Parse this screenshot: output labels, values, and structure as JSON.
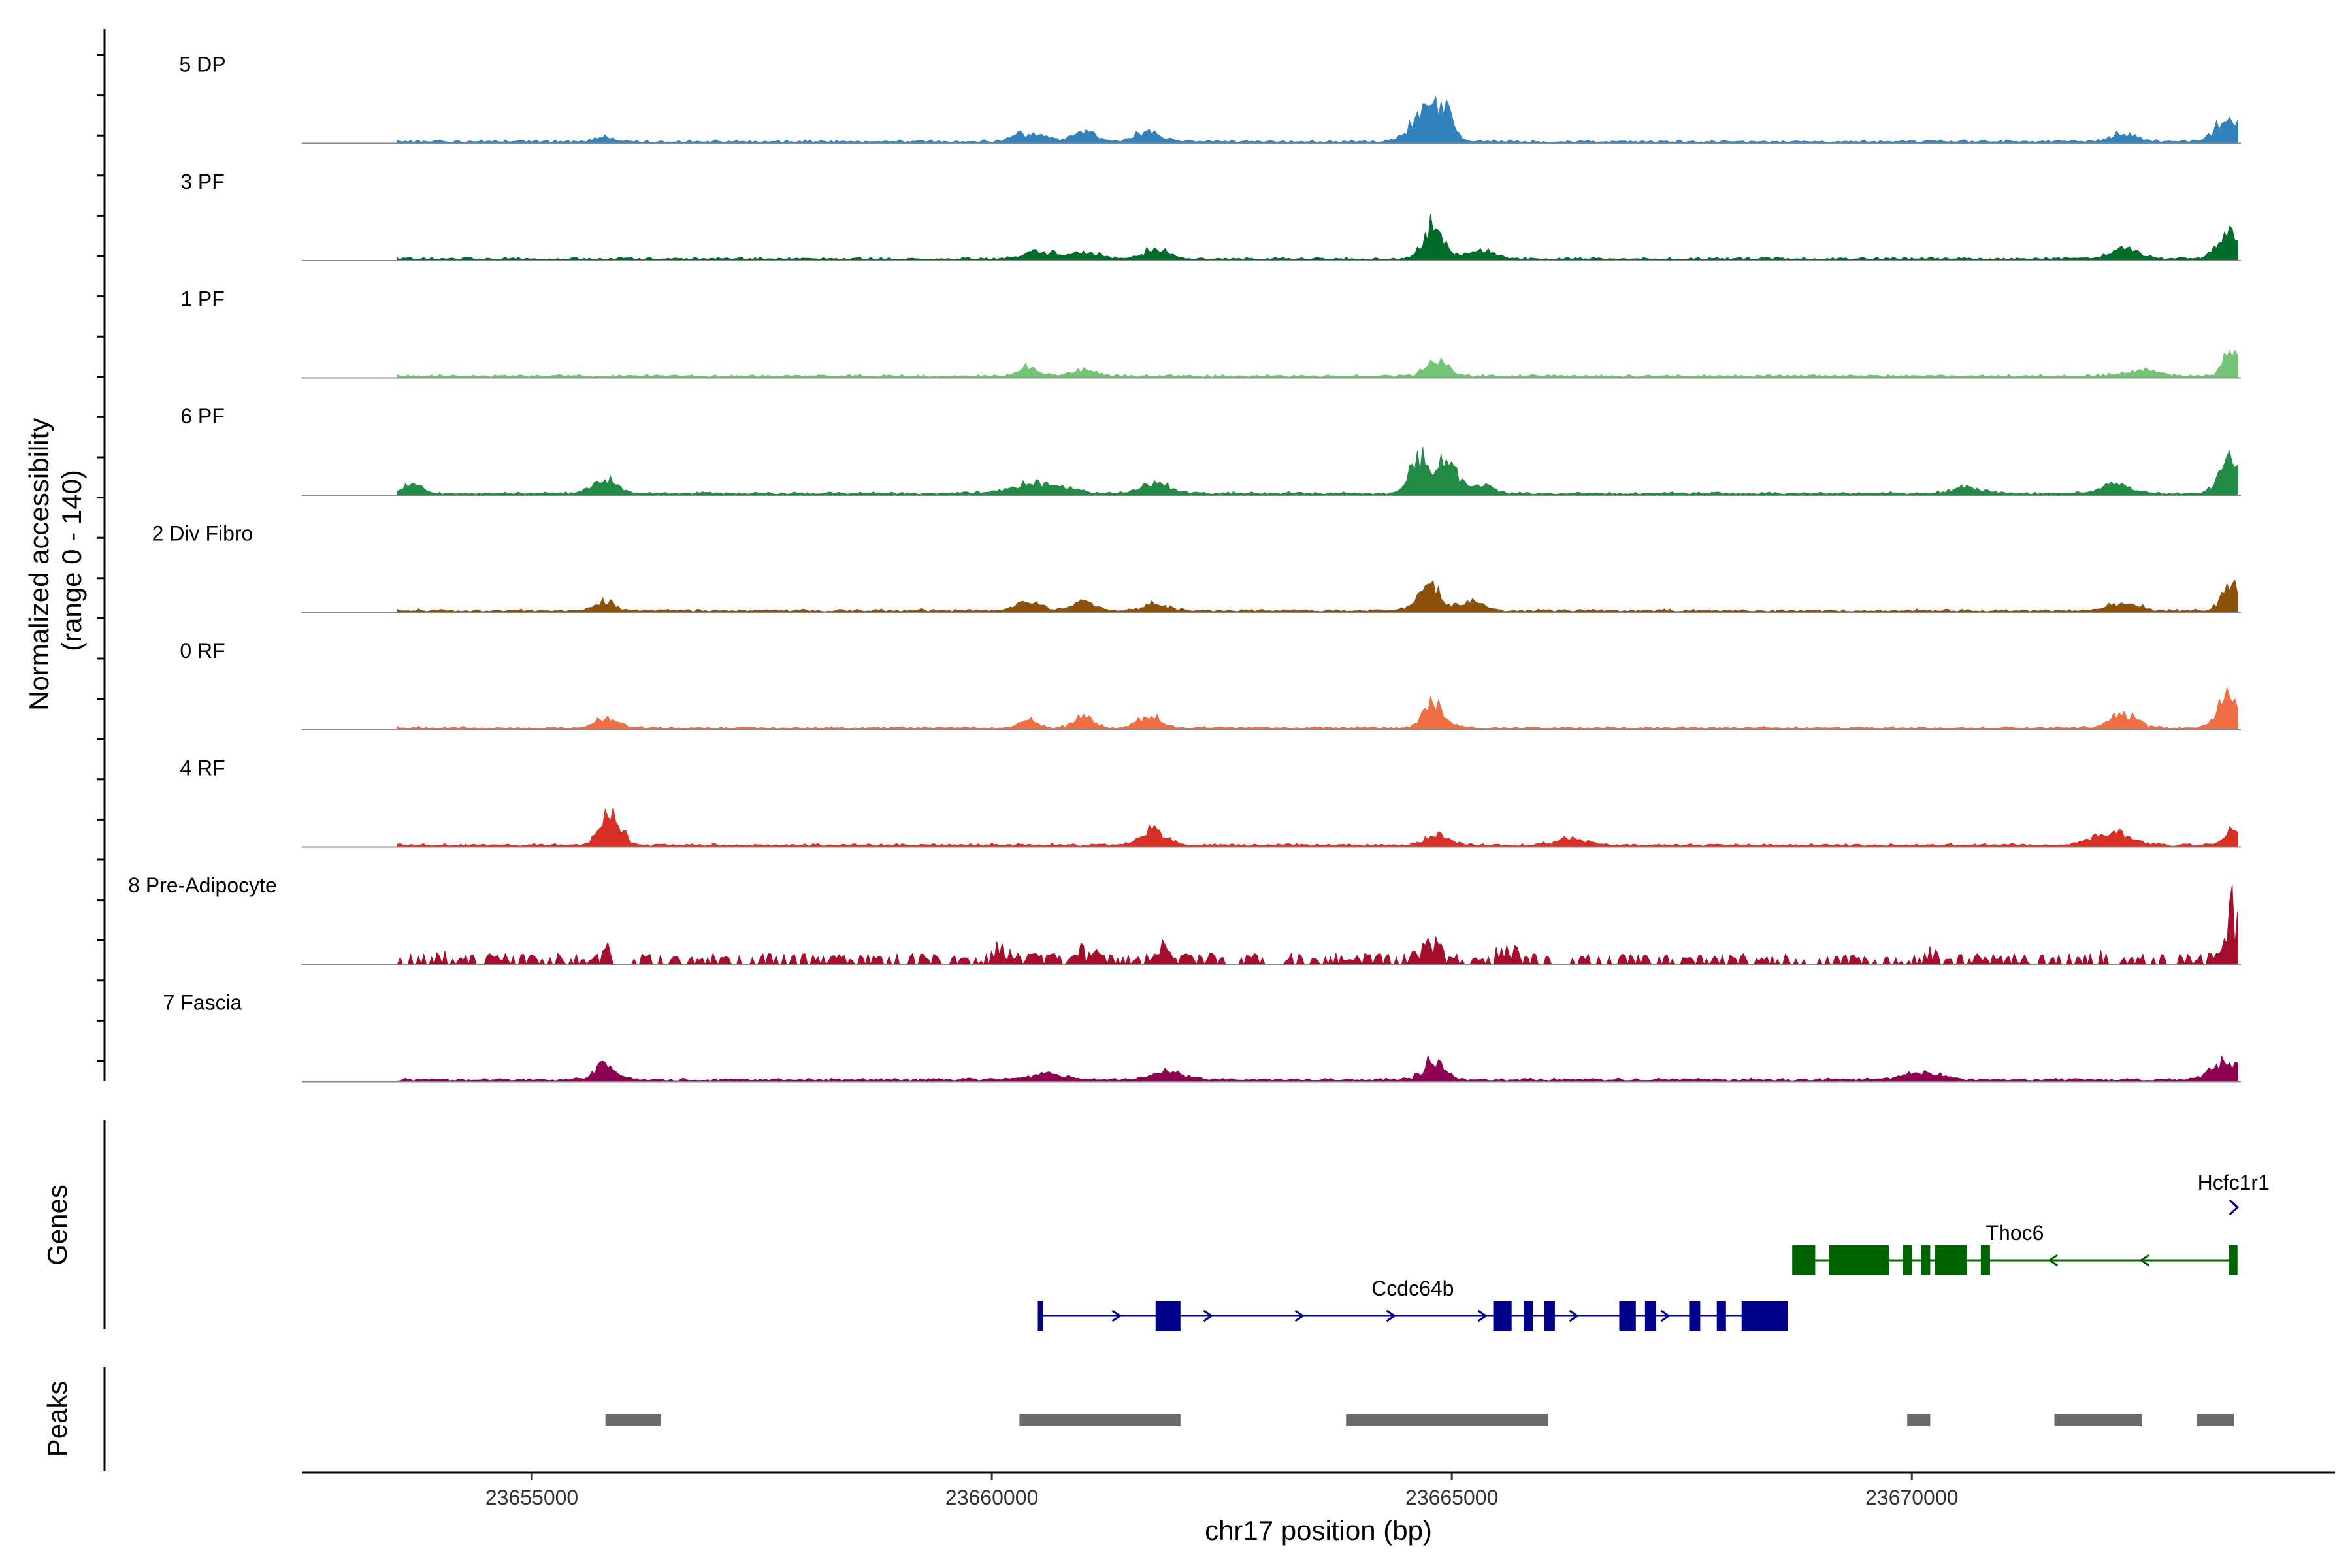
{
  "chart_data": {
    "type": "area",
    "title": "",
    "xlabel": "chr17 position (bp)",
    "ylabel": "Normalized accessibility\n(range 0 - 140)",
    "ylabel_lines": [
      "Normalized accessibility",
      "(range 0 - 140)"
    ],
    "y_range": [
      0,
      140
    ],
    "xlim": [
      23652500,
      23674600
    ],
    "data_xlim": [
      23653540,
      23673540
    ],
    "x_ticks": [
      23655000,
      23660000,
      23665000,
      23670000
    ],
    "x_tick_labels": [
      "23655000",
      "23660000",
      "23665000",
      "23670000"
    ],
    "series": [
      {
        "name": "5 DP",
        "color": "#3182bd",
        "peaks": [
          [
            23655800,
            8,
            110
          ],
          [
            23660400,
            12,
            160
          ],
          [
            23661000,
            16,
            120
          ],
          [
            23661700,
            14,
            140
          ],
          [
            23664750,
            50,
            90
          ],
          [
            23664950,
            55,
            70
          ],
          [
            23664600,
            22,
            120
          ],
          [
            23672300,
            12,
            140
          ],
          [
            23673450,
            42,
            130
          ]
        ]
      },
      {
        "name": "3 PF",
        "color": "#006d2c",
        "peaks": [
          [
            23660500,
            10,
            170
          ],
          [
            23661000,
            10,
            160
          ],
          [
            23661800,
            15,
            140
          ],
          [
            23664800,
            50,
            110
          ],
          [
            23665300,
            12,
            170
          ],
          [
            23672300,
            16,
            150
          ],
          [
            23673450,
            42,
            120
          ]
        ]
      },
      {
        "name": "1 PF",
        "color": "#74c476",
        "peaks": [
          [
            23660400,
            13,
            110
          ],
          [
            23661000,
            8,
            140
          ],
          [
            23664850,
            26,
            120
          ],
          [
            23672500,
            8,
            220
          ],
          [
            23673480,
            40,
            90
          ]
        ]
      },
      {
        "name": "6 PF",
        "color": "#238b45",
        "peaks": [
          [
            23653700,
            12,
            110
          ],
          [
            23655800,
            22,
            130
          ],
          [
            23660500,
            16,
            270
          ],
          [
            23661800,
            16,
            140
          ],
          [
            23664650,
            48,
            110
          ],
          [
            23664950,
            50,
            110
          ],
          [
            23665300,
            14,
            120
          ],
          [
            23670600,
            10,
            160
          ],
          [
            23672200,
            14,
            160
          ],
          [
            23673450,
            52,
            110
          ]
        ]
      },
      {
        "name": "2 Div Fibro",
        "color": "#8c510a",
        "peaks": [
          [
            23655800,
            13,
            110
          ],
          [
            23660400,
            16,
            130
          ],
          [
            23661000,
            14,
            120
          ],
          [
            23661800,
            11,
            120
          ],
          [
            23664750,
            38,
            120
          ],
          [
            23665200,
            14,
            140
          ],
          [
            23672300,
            12,
            150
          ],
          [
            23673470,
            50,
            90
          ]
        ]
      },
      {
        "name": "0 RF",
        "color": "#f16d44",
        "peaks": [
          [
            23655800,
            14,
            130
          ],
          [
            23660400,
            10,
            110
          ],
          [
            23661000,
            16,
            110
          ],
          [
            23661700,
            18,
            130
          ],
          [
            23664800,
            32,
            120
          ],
          [
            23672300,
            20,
            140
          ],
          [
            23673450,
            48,
            120
          ]
        ]
      },
      {
        "name": "4 RF",
        "color": "#d73027",
        "peaks": [
          [
            23655850,
            50,
            110
          ],
          [
            23661750,
            26,
            130
          ],
          [
            23664850,
            16,
            120
          ],
          [
            23666300,
            10,
            170
          ],
          [
            23672000,
            12,
            140
          ],
          [
            23672300,
            16,
            140
          ],
          [
            23673480,
            25,
            80
          ]
        ]
      },
      {
        "name": "8 Pre-Adipocyte",
        "color": "#a50f2d",
        "peaks": [
          [
            23654000,
            10,
            60
          ],
          [
            23655800,
            18,
            60
          ],
          [
            23660100,
            42,
            60
          ],
          [
            23660900,
            50,
            60
          ],
          [
            23661100,
            20,
            60
          ],
          [
            23661800,
            50,
            60
          ],
          [
            23664750,
            44,
            100
          ],
          [
            23665600,
            40,
            90
          ],
          [
            23670200,
            20,
            60
          ],
          [
            23672000,
            14,
            60
          ],
          [
            23673500,
            120,
            60
          ]
        ]
      },
      {
        "name": "7 Fascia",
        "color": "#8e0152",
        "peaks": [
          [
            23655800,
            22,
            120
          ],
          [
            23660600,
            9,
            200
          ],
          [
            23661900,
            14,
            160
          ],
          [
            23664800,
            30,
            110
          ],
          [
            23670100,
            12,
            200
          ],
          [
            23673450,
            28,
            170
          ]
        ]
      }
    ],
    "genes": [
      {
        "name": "Hcfc1r1",
        "strand": "+",
        "start": 23673480,
        "end": 23673540,
        "exons": [],
        "color": "#00008b"
      },
      {
        "name": "Thoc6",
        "strand": "-",
        "start": 23668700,
        "end": 23673540,
        "exons": [
          [
            23668700,
            23668950
          ],
          [
            23669100,
            23669750
          ],
          [
            23669900,
            23670000
          ],
          [
            23670100,
            23670200
          ],
          [
            23670250,
            23670600
          ],
          [
            23670750,
            23670850
          ],
          [
            23673450,
            23673540
          ]
        ],
        "color": "#006400"
      },
      {
        "name": "Ccdc64b",
        "strand": "+",
        "start": 23660500,
        "end": 23668650,
        "exons": [
          [
            23660500,
            23660540
          ],
          [
            23661780,
            23662050
          ],
          [
            23665450,
            23665650
          ],
          [
            23665780,
            23665880
          ],
          [
            23666000,
            23666120
          ],
          [
            23666820,
            23667000
          ],
          [
            23667100,
            23667220
          ],
          [
            23667580,
            23667700
          ],
          [
            23667880,
            23667980
          ],
          [
            23668150,
            23668650
          ]
        ],
        "color": "#00008b"
      }
    ],
    "gene_rows": {
      "Hcfc1r1": 0,
      "Thoc6": 1,
      "Ccdc64b": 2
    },
    "peaks_regions": [
      [
        23655800,
        23656400
      ],
      [
        23660300,
        23662050
      ],
      [
        23663850,
        23666050
      ],
      [
        23669950,
        23670200
      ],
      [
        23671550,
        23672500
      ],
      [
        23673100,
        23673500
      ]
    ],
    "panels": {
      "genes": "Genes",
      "peaks": "Peaks"
    }
  }
}
